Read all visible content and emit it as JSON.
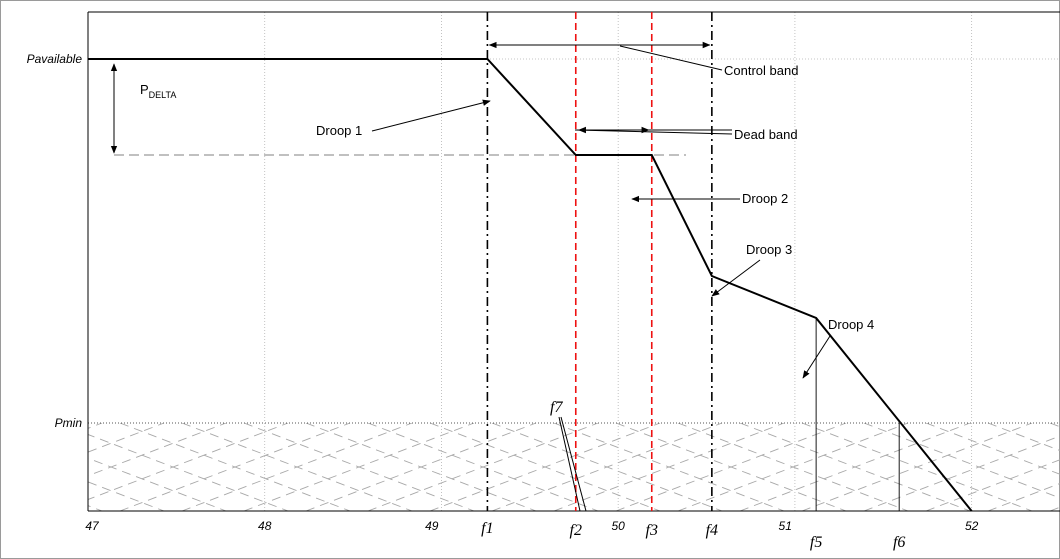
{
  "chart_data": {
    "type": "line",
    "xlim": [
      47,
      52.5
    ],
    "x_ticks": [
      {
        "value": 47,
        "label": "47"
      },
      {
        "value": 48,
        "label": "48"
      },
      {
        "value": 49,
        "label": "49"
      },
      {
        "value": 50,
        "label": "50"
      },
      {
        "value": 51,
        "label": "51"
      },
      {
        "value": 52,
        "label": "52"
      }
    ],
    "y_levels": {
      "pavailable": {
        "value": 1.0,
        "label": "Pavailable"
      },
      "pdelta_level": {
        "value": 0.78
      },
      "pmin": {
        "value": 0.2,
        "label": "Pmin"
      },
      "axis_min": 0.0
    },
    "freq_markers": [
      {
        "key": "f1",
        "label": "f1",
        "x": 49.26,
        "style": "dashdot"
      },
      {
        "key": "f2",
        "label": "f2",
        "x": 49.76,
        "style": "red-dashed"
      },
      {
        "key": "f3",
        "label": "f3",
        "x": 50.19,
        "style": "red-dashed"
      },
      {
        "key": "f4",
        "label": "f4",
        "x": 50.53,
        "style": "dashdot"
      },
      {
        "key": "f5",
        "label": "f5",
        "x": 51.12,
        "style": "thin"
      },
      {
        "key": "f6",
        "label": "f6",
        "x": 51.59,
        "style": "thin"
      }
    ],
    "f7_label": "f7",
    "series": [
      {
        "points": [
          [
            47.0,
            1.0
          ],
          [
            49.26,
            1.0
          ],
          [
            49.76,
            0.78
          ],
          [
            50.19,
            0.78
          ],
          [
            50.53,
            0.5
          ],
          [
            51.12,
            0.42
          ],
          [
            52.0,
            0.0
          ]
        ]
      }
    ],
    "annotations": {
      "pdelta_main": "P",
      "pdelta_sub": "DELTA",
      "control_band": "Control band",
      "dead_band": "Dead band",
      "droop1": "Droop 1",
      "droop2": "Droop 2",
      "droop3": "Droop 3",
      "droop4": "Droop 4"
    },
    "grid": true
  }
}
